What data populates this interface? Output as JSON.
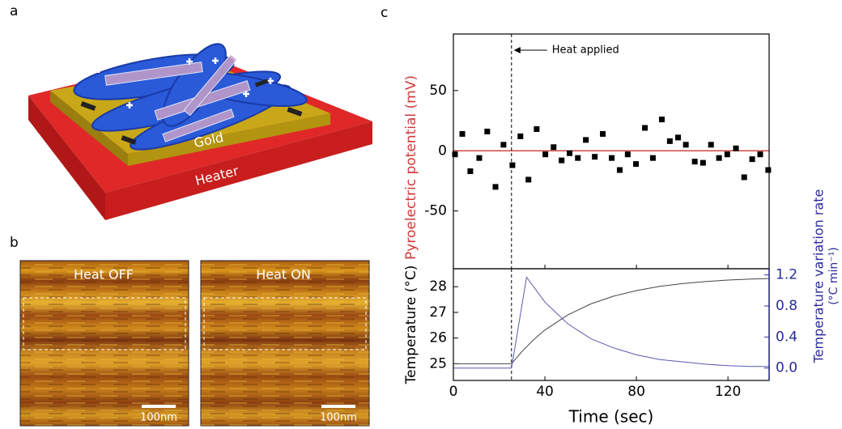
{
  "panels": {
    "a": {
      "label": "a",
      "gold": "Gold",
      "heater": "Heater"
    },
    "b": {
      "label": "b",
      "images": [
        {
          "label": "Heat OFF",
          "scale_bar": "100nm"
        },
        {
          "label": "Heat ON",
          "scale_bar": "100nm"
        }
      ]
    },
    "c": {
      "label": "c"
    }
  },
  "chart_data": [
    {
      "type": "scatter",
      "color": "#000000",
      "x": [
        0.7,
        3.9,
        7.4,
        11.3,
        14.8,
        18.4,
        21.9,
        25.8,
        29.3,
        32.8,
        36.4,
        40.2,
        43.8,
        47.3,
        50.8,
        54.4,
        57.9,
        61.8,
        65.3,
        69.2,
        72.7,
        76.2,
        79.8,
        83.7,
        87.2,
        91.1,
        94.6,
        98.2,
        101.6,
        105.5,
        109.1,
        112.6,
        116.1,
        119.7,
        123.5,
        127.1,
        130.6,
        134.1,
        137.6
      ],
      "values": [
        -3,
        14,
        -17,
        -6,
        16,
        -30,
        5,
        -12,
        12,
        -24,
        18,
        -3,
        3,
        -8,
        -2,
        -6,
        9,
        -5,
        14,
        -6,
        -16,
        -3,
        -11,
        19,
        -6,
        26,
        8,
        11,
        5,
        -9,
        -10,
        5,
        -6,
        -3,
        2,
        -22,
        -7,
        -3,
        -16
      ],
      "xlim": [
        0,
        138
      ],
      "ylim": [
        -98,
        97
      ],
      "yticks": [
        -50,
        0,
        50
      ],
      "ylabel": "Pyroelectric potential (mV)",
      "ylabel_color": "#d03a3a",
      "reference_line": {
        "value": 0,
        "color": "#cc2222"
      },
      "annotation": {
        "text": "Heat applied",
        "x": 25.4
      }
    },
    {
      "type": "line",
      "xlabel": "Time (sec)",
      "xlim": [
        0,
        138
      ],
      "xticks": [
        0,
        40,
        80,
        120
      ],
      "ylim": [
        24.35,
        28.7
      ],
      "yticks": [
        25,
        26,
        27,
        28
      ],
      "ylabel": "Temperature (°C)",
      "y2lim": [
        -0.16,
        1.28
      ],
      "y2ticks": [
        {
          "value": 0,
          "label": "0.0"
        },
        0.4,
        0.8,
        1.2
      ],
      "y2label": [
        "Temperature variation rate",
        "(°C min⁻¹)"
      ],
      "y2_color": "#2a2a9a",
      "series": [
        {
          "color": "#444444",
          "x": [
            0,
            25.4,
            30,
            35,
            40,
            50,
            60,
            70,
            80,
            90,
            100,
            110,
            120,
            130,
            138
          ],
          "values": [
            25.0,
            25.0,
            25.48,
            25.93,
            26.31,
            26.9,
            27.33,
            27.63,
            27.85,
            28.01,
            28.12,
            28.2,
            28.26,
            28.3,
            28.32
          ]
        },
        {
          "color": "#5a5ab0",
          "axis": "y2",
          "x": [
            0,
            25.4,
            32,
            40,
            50,
            60,
            70,
            80,
            90,
            100,
            110,
            120,
            130,
            138
          ],
          "values": [
            0,
            0,
            1.17,
            0.85,
            0.57,
            0.38,
            0.26,
            0.17,
            0.11,
            0.08,
            0.05,
            0.03,
            0.02,
            0.02
          ]
        }
      ]
    }
  ]
}
